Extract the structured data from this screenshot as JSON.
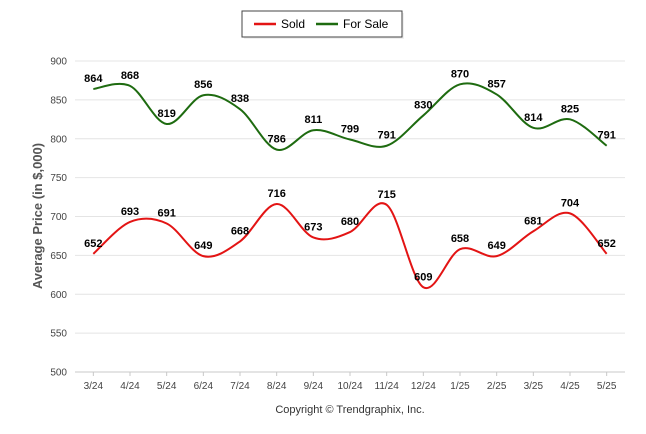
{
  "chart_data": {
    "type": "line",
    "categories": [
      "3/24",
      "4/24",
      "5/24",
      "6/24",
      "7/24",
      "8/24",
      "9/24",
      "10/24",
      "11/24",
      "12/24",
      "1/25",
      "2/25",
      "3/25",
      "4/25",
      "5/25"
    ],
    "series": [
      {
        "name": "Sold",
        "color": "#e31414",
        "values": [
          652,
          693,
          691,
          649,
          668,
          716,
          673,
          680,
          715,
          609,
          658,
          649,
          681,
          704,
          652
        ]
      },
      {
        "name": "For Sale",
        "color": "#1e6b10",
        "values": [
          864,
          868,
          819,
          856,
          838,
          786,
          811,
          799,
          791,
          830,
          870,
          857,
          814,
          825,
          791
        ]
      }
    ],
    "ylabel": "Average Price (in $,000)",
    "ylim": [
      500,
      900
    ],
    "yticks": [
      500,
      550,
      600,
      650,
      700,
      750,
      800,
      850,
      900
    ],
    "grid": true,
    "legend": "top-center",
    "smooth": true,
    "copyright": "Copyright © Trendgraphix, Inc."
  }
}
